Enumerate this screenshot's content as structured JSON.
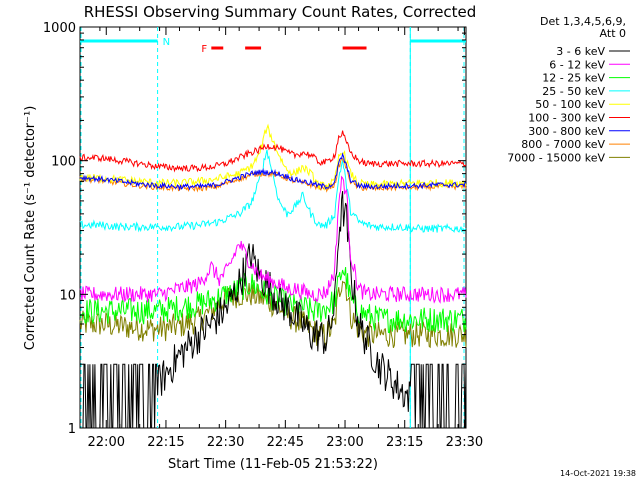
{
  "chart_data": {
    "type": "line",
    "title": "RHESSI Observing Summary Count Rates, Corrected",
    "xlabel": "Start Time (11-Feb-05 21:53:22)",
    "ylabel": "Corrected Count Rate (s⁻¹ detector⁻¹)",
    "yscale": "log",
    "ylim": [
      1,
      1000
    ],
    "xlim_minutes": [
      0,
      97
    ],
    "x_ticks": [
      {
        "min": 6.6,
        "label": "22:00"
      },
      {
        "min": 21.6,
        "label": "22:15"
      },
      {
        "min": 36.6,
        "label": "22:30"
      },
      {
        "min": 51.6,
        "label": "22:45"
      },
      {
        "min": 66.6,
        "label": "23:00"
      },
      {
        "min": 81.6,
        "label": "23:15"
      },
      {
        "min": 96.6,
        "label": "23:30"
      }
    ],
    "y_ticks": [
      {
        "value": 1,
        "label": "1"
      },
      {
        "value": 10,
        "label": "10"
      },
      {
        "value": 100,
        "label": "100"
      },
      {
        "value": 1000,
        "label": "1000"
      }
    ],
    "legend_header": [
      "Det 1,3,4,5,6,9,",
      "Att 0"
    ],
    "x_sample_minutes": [
      0,
      5,
      10,
      15,
      20,
      25,
      30,
      33,
      35,
      37,
      40,
      43,
      45,
      47,
      50,
      52,
      54,
      56,
      58,
      60,
      62,
      64,
      65,
      66,
      67,
      68,
      70,
      72,
      75,
      80,
      85,
      90,
      97
    ],
    "series": [
      {
        "name": "3 - 6 keV",
        "color": "#000000",
        "values": [
          1.5,
          1.5,
          1.5,
          1.5,
          2.2,
          3.5,
          5,
          6,
          7,
          8,
          12,
          20,
          14,
          12,
          9,
          8,
          7,
          6,
          5,
          5,
          4.5,
          8,
          30,
          45,
          35,
          15,
          6,
          4.5,
          3,
          2,
          1.5,
          1.5,
          1.5
        ]
      },
      {
        "name": "6 - 12 keV",
        "color": "#ff00ff",
        "values": [
          10,
          10,
          10,
          10,
          10,
          11,
          12,
          16,
          13,
          15,
          24,
          17,
          14,
          13,
          12,
          11,
          11,
          10.5,
          10,
          10,
          10.5,
          15,
          50,
          75,
          55,
          20,
          11,
          10,
          10,
          10,
          10,
          10,
          10
        ]
      },
      {
        "name": "12 - 25 keV",
        "color": "#00ff00",
        "values": [
          7.5,
          7.5,
          7.5,
          7.5,
          7.5,
          8,
          8.5,
          9,
          9.5,
          10,
          11,
          12,
          11,
          10,
          9,
          8.5,
          8,
          8,
          7.5,
          7.5,
          8,
          9,
          12,
          16,
          13,
          9,
          7.5,
          7,
          6.5,
          6.5,
          6.5,
          6.5,
          6.5
        ]
      },
      {
        "name": "25 - 50 keV",
        "color": "#00ffff",
        "values": [
          33,
          33,
          32,
          32,
          32,
          32,
          33,
          34,
          35,
          37,
          40,
          48,
          70,
          120,
          50,
          40,
          45,
          55,
          40,
          33,
          33,
          40,
          75,
          100,
          65,
          42,
          35,
          33,
          32,
          32,
          31,
          31,
          31
        ]
      },
      {
        "name": "50 - 100 keV",
        "color": "#ffff00",
        "values": [
          75,
          74,
          72,
          70,
          68,
          68,
          70,
          72,
          74,
          76,
          80,
          90,
          110,
          180,
          110,
          85,
          80,
          90,
          80,
          65,
          65,
          70,
          105,
          120,
          100,
          80,
          68,
          66,
          66,
          67,
          68,
          68,
          68
        ]
      },
      {
        "name": "100 - 300 keV",
        "color": "#ff0000",
        "values": [
          105,
          105,
          100,
          95,
          90,
          88,
          88,
          90,
          92,
          96,
          105,
          115,
          120,
          130,
          125,
          115,
          110,
          115,
          110,
          98,
          97,
          110,
          150,
          160,
          135,
          115,
          100,
          95,
          95,
          95,
          95,
          95,
          95
        ]
      },
      {
        "name": "300 - 800 keV",
        "color": "#0000ff",
        "values": [
          75,
          73,
          70,
          67,
          65,
          64,
          64,
          65,
          67,
          70,
          75,
          80,
          82,
          82,
          80,
          76,
          72,
          70,
          68,
          65,
          64,
          68,
          95,
          110,
          90,
          72,
          65,
          64,
          64,
          65,
          65,
          66,
          66
        ]
      },
      {
        "name": "800 - 7000 keV",
        "color": "#ff8000",
        "values": [
          73,
          71,
          68,
          65,
          63,
          62,
          62,
          63,
          65,
          68,
          73,
          78,
          80,
          80,
          78,
          74,
          70,
          68,
          66,
          63,
          62,
          66,
          90,
          105,
          86,
          70,
          63,
          62,
          62,
          63,
          63,
          64,
          64
        ]
      },
      {
        "name": "7000 - 15000 keV",
        "color": "#808000",
        "values": [
          6,
          6,
          5.8,
          5.6,
          5.5,
          5.8,
          6.5,
          7.5,
          8.5,
          9.5,
          10,
          10,
          9.5,
          9,
          8,
          7,
          6.5,
          6,
          5.5,
          5,
          5,
          6,
          10,
          14,
          11,
          7,
          5.5,
          5,
          5,
          5,
          5,
          5,
          5
        ]
      }
    ],
    "attenuator_bar": {
      "label": "N",
      "spans": [
        [
          0,
          19.5
        ],
        [
          83,
          97
        ]
      ],
      "color": "#00ffff"
    },
    "flare_bar": {
      "label": "F",
      "spans": [
        [
          33,
          36
        ],
        [
          41.5,
          45.5
        ],
        [
          66,
          72
        ]
      ],
      "color": "#ff0000"
    },
    "night_boundaries_min": [
      19.5,
      83
    ],
    "timestamp": "14-Oct-2021 19:38"
  }
}
